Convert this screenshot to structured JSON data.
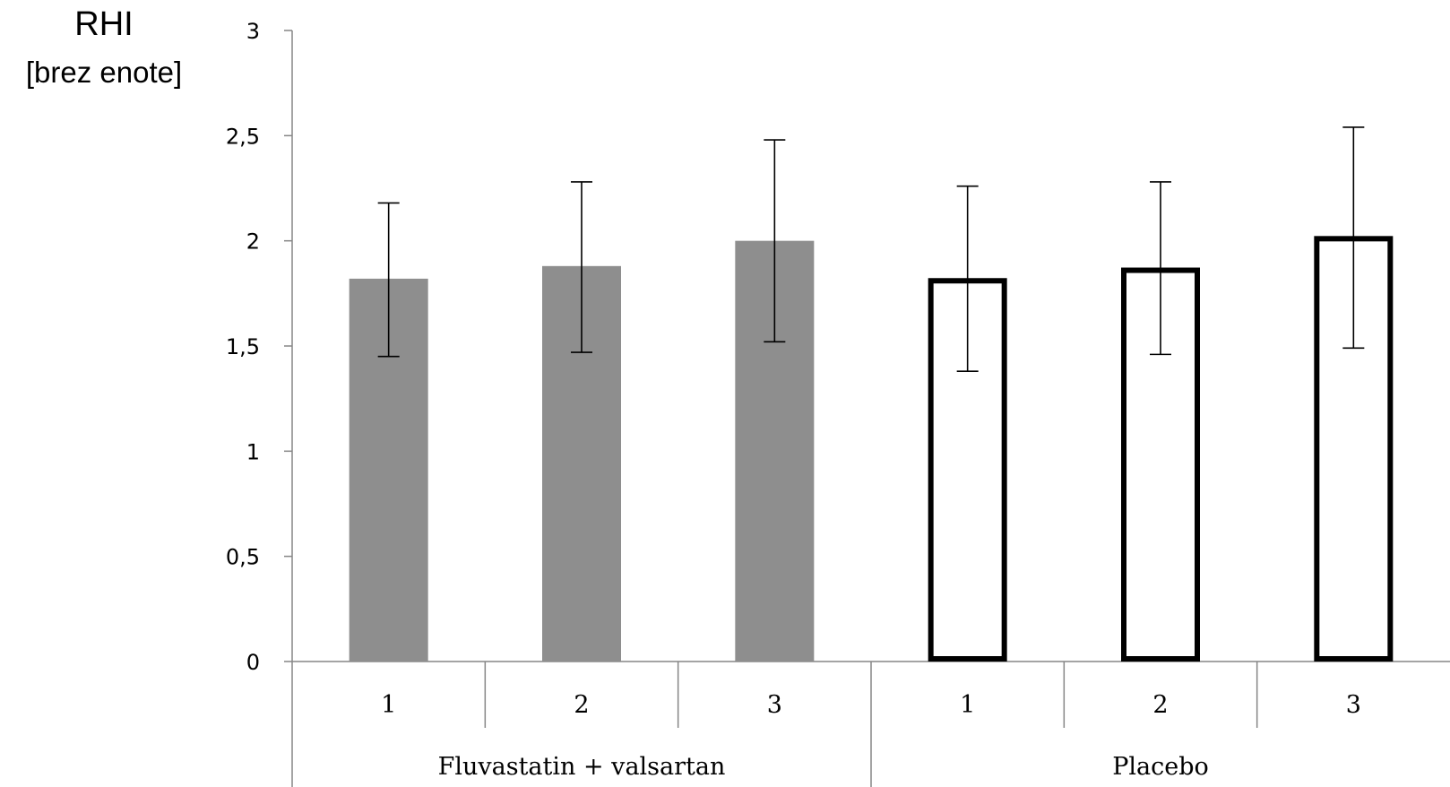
{
  "chart_data": {
    "type": "bar",
    "title": "",
    "ylabel": "RHI",
    "ylabel_unit": "[brez enote]",
    "xlabel": "",
    "ylim": [
      0,
      3
    ],
    "yticks": [
      0,
      0.5,
      1,
      1.5,
      2,
      2.5,
      3
    ],
    "ytick_labels": [
      "0",
      "0,5",
      "1",
      "1,5",
      "2",
      "2,5",
      "3"
    ],
    "grid": false,
    "legend": "none",
    "groups": [
      {
        "label": "Fluvastatin + valsartan",
        "style": "filled",
        "color": "#8e8e8e",
        "categories": [
          "1",
          "2",
          "3"
        ],
        "values": [
          1.82,
          1.88,
          2.0
        ],
        "err_low": [
          1.45,
          1.47,
          1.52
        ],
        "err_high": [
          2.18,
          2.28,
          2.48
        ]
      },
      {
        "label": "Placebo",
        "style": "outline",
        "color": "#000000",
        "categories": [
          "1",
          "2",
          "3"
        ],
        "values": [
          1.81,
          1.86,
          2.01
        ],
        "err_low": [
          1.38,
          1.46,
          1.49
        ],
        "err_high": [
          2.26,
          2.28,
          2.54
        ]
      }
    ]
  }
}
